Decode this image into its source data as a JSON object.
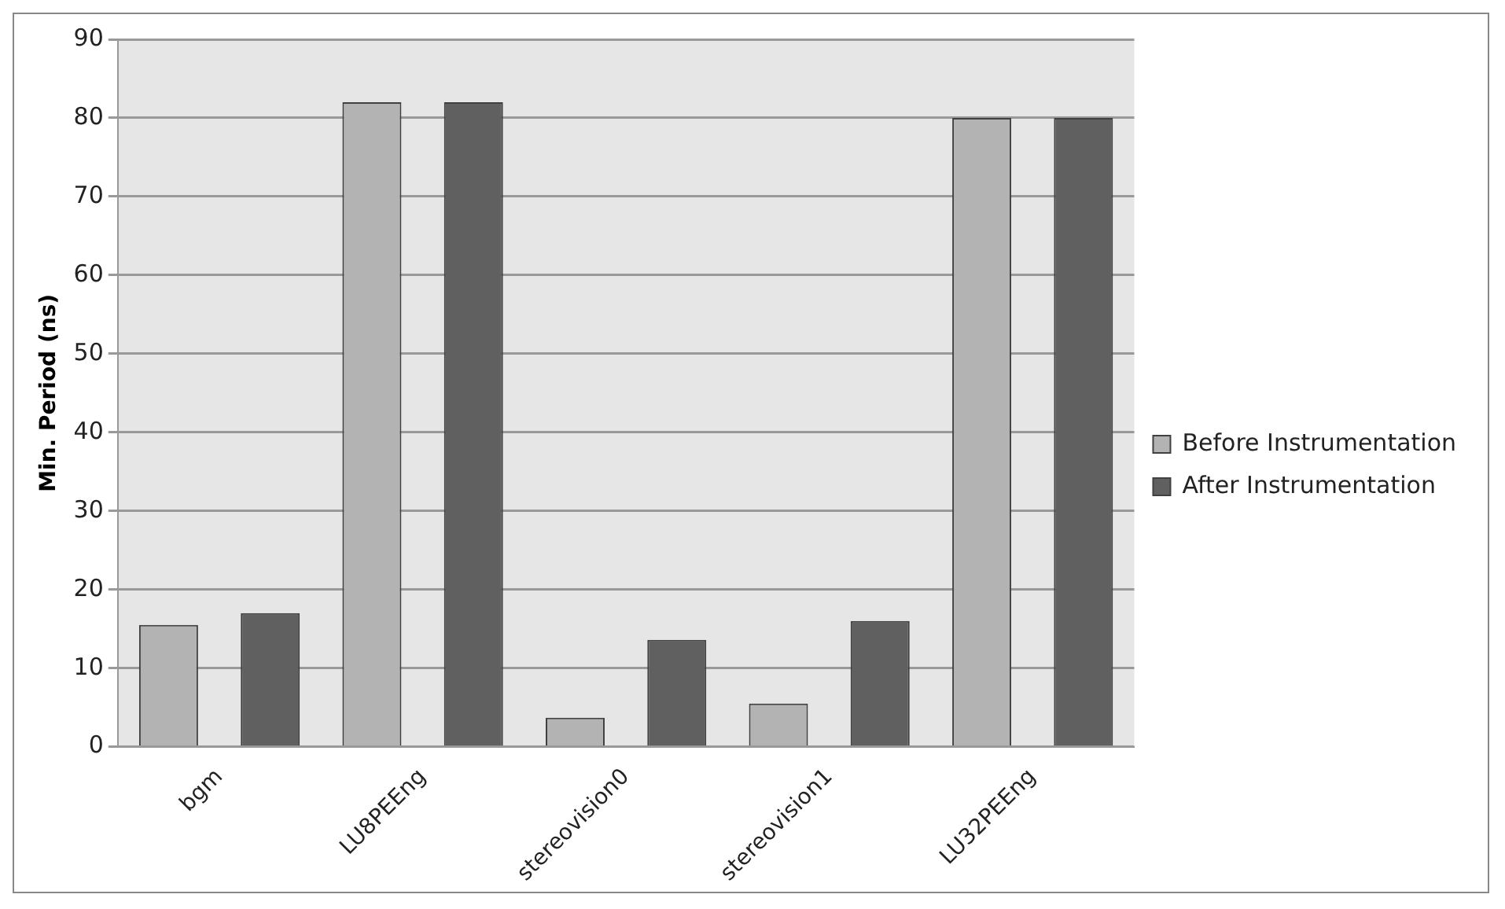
{
  "chart_data": {
    "type": "bar",
    "ylabel": "Min. Period (ns)",
    "categories": [
      "bgm",
      "LU8PEEng",
      "stereovision0",
      "stereovision1",
      "LU32PEEng"
    ],
    "series": [
      {
        "name": "Before Instrumentation",
        "color": "#b3b3b3",
        "values": [
          15.5,
          82,
          3.7,
          5.5,
          80
        ]
      },
      {
        "name": "After Instrumentation",
        "color": "#606060",
        "values": [
          17,
          82,
          13.6,
          16,
          80
        ]
      }
    ],
    "ylim": [
      0,
      90
    ],
    "yticks": [
      0,
      10,
      20,
      30,
      40,
      50,
      60,
      70,
      80,
      90
    ],
    "grid": "y",
    "legend": "right"
  }
}
